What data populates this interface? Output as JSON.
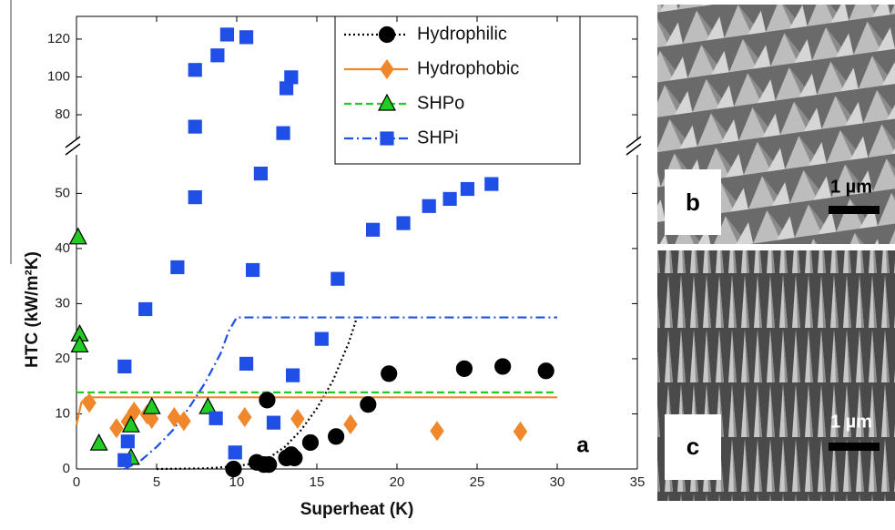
{
  "chart_data": {
    "type": "scatter",
    "xlabel": "Superheat (K)",
    "ylabel": "HTC (kW/m²K)",
    "panel_label": "a",
    "xlim": [
      0,
      35
    ],
    "xticks": [
      0,
      5,
      10,
      15,
      20,
      25,
      30,
      35
    ],
    "ylim": [
      0,
      132
    ],
    "ybreak": [
      57,
      67
    ],
    "yticks": [
      0,
      10,
      20,
      30,
      40,
      50,
      80,
      100,
      120
    ],
    "legend": "upper right",
    "series": [
      {
        "name": "Hydrophilic",
        "color": "#000000",
        "marker": "circle",
        "line_style": "dotted",
        "x": [
          9.8,
          11.25,
          11.7,
          11.9,
          12,
          13.1,
          13.4,
          13.6,
          14.6,
          16.2,
          18.2,
          19.5,
          24.2,
          26.6,
          29.3
        ],
        "values": [
          0,
          1.2,
          0.8,
          12.5,
          0.8,
          2,
          2.6,
          2,
          4.8,
          5.9,
          11.7,
          17.3,
          18.2,
          18.6,
          17.8
        ],
        "fit_x": [
          5,
          8,
          10,
          11,
          12,
          13,
          14,
          15,
          16,
          17,
          17.5
        ],
        "fit_values": [
          0,
          0.1,
          0.5,
          1,
          2,
          4,
          7,
          11,
          16,
          23,
          27.5
        ]
      },
      {
        "name": "Hydrophobic",
        "color": "#f0872a",
        "marker": "diamond",
        "line_style": "solid",
        "x": [
          0.8,
          2.5,
          3.2,
          3.6,
          4.4,
          4.7,
          6.1,
          6.7,
          10.5,
          13.8,
          17.1,
          22.5,
          27.7
        ],
        "values": [
          12,
          7.4,
          8.6,
          10.4,
          9.9,
          9.1,
          9.4,
          8.7,
          9.4,
          9.1,
          8.1,
          6.9,
          6.8
        ],
        "fit_x": [
          0,
          0.3,
          0.6,
          30
        ],
        "fit_values": [
          8,
          12,
          13,
          13
        ]
      },
      {
        "name": "SHPo",
        "color": "#22cc22",
        "marker": "triangle",
        "line_style": "dashed",
        "x": [
          0.1,
          0.2,
          0.2,
          1.4,
          3.4,
          3.4,
          4.7,
          8.2
        ],
        "values": [
          42,
          24.4,
          22.4,
          4.6,
          7.9,
          2,
          11.2,
          11.2
        ],
        "fit_x": [
          0,
          30
        ],
        "fit_values": [
          13.9,
          13.9
        ]
      },
      {
        "name": "SHPi",
        "color": "#1f4fe6",
        "marker": "square",
        "line_style": "dashdot",
        "x": [
          3,
          3.2,
          3,
          4.3,
          6.3,
          7.4,
          8.7,
          9.9,
          10.6,
          11,
          11.5,
          12.3,
          13.5,
          15.3,
          16.3,
          18.5,
          20.4,
          22,
          23.3,
          24.4,
          25.9,
          7.4,
          7.4,
          8.8,
          9.4,
          10.6,
          12.9,
          13.1,
          13.4
        ],
        "values": [
          1.6,
          5,
          18.6,
          29,
          36.6,
          49.3,
          9.2,
          3,
          19.1,
          36.1,
          53.6,
          8.4,
          17,
          23.6,
          34.5,
          43.4,
          44.6,
          47.7,
          49,
          50.8,
          51.7,
          73.7,
          103.7,
          111.4,
          122.4,
          121,
          70.3,
          94,
          99.8
        ],
        "fit_x": [
          3,
          4,
          5,
          6,
          7,
          8,
          9,
          9.5,
          10,
          30
        ],
        "fit_values": [
          0,
          1.5,
          4,
          7,
          11,
          15.5,
          21,
          25,
          27.5,
          27.5
        ]
      }
    ]
  },
  "images": [
    {
      "label": "b",
      "scale": "1 µm"
    },
    {
      "label": "c",
      "scale": "1 µm"
    }
  ]
}
